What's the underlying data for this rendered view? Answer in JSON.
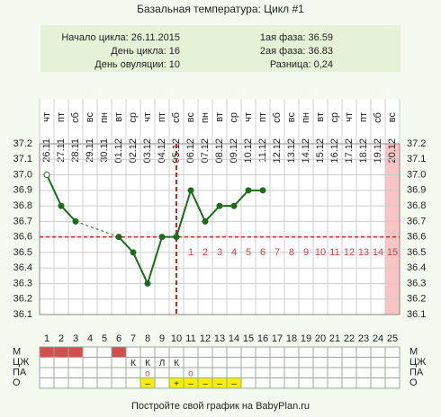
{
  "chart_data": {
    "type": "line",
    "title": "Базальная температура: Цикл #1",
    "info_left": [
      "Начало цикла: 26.11.2015",
      "День цикла: 16",
      "День овуляции: 10"
    ],
    "info_right": [
      "1ая фаза: 36.59",
      "2ая фаза: 36.83",
      "Разница: 0,24"
    ],
    "categories": [
      1,
      2,
      3,
      4,
      5,
      6,
      7,
      8,
      9,
      10,
      11,
      12,
      13,
      14,
      15,
      16,
      17,
      18,
      19,
      20,
      21,
      22,
      23,
      24,
      25
    ],
    "weekdays": [
      "чт",
      "пт",
      "сб",
      "вс",
      "пн",
      "вт",
      "ср",
      "чт",
      "пт",
      "сб",
      "вс",
      "пн",
      "вт",
      "ср",
      "чт",
      "пт",
      "сб",
      "вс",
      "пн",
      "вт",
      "ср",
      "чт",
      "пт",
      "сб",
      "вс"
    ],
    "dates": [
      "26.11",
      "27.11",
      "28.11",
      "29.11",
      "30.11",
      "01.12",
      "02.12",
      "03.12",
      "04.12",
      "05.12",
      "06.12",
      "07.12",
      "08.12",
      "09.12",
      "10.12",
      "11.12",
      "12.12",
      "13.12",
      "14.12",
      "15.12",
      "16.12",
      "17.12",
      "18.12",
      "19.12",
      "20.12"
    ],
    "series": [
      {
        "name": "Температура",
        "color": "#1e6b1e",
        "values": [
          37.0,
          36.8,
          36.7,
          null,
          null,
          36.6,
          36.5,
          36.3,
          36.6,
          36.6,
          36.9,
          36.7,
          36.8,
          36.8,
          36.9,
          36.9,
          null,
          null,
          null,
          null,
          null,
          null,
          null,
          null,
          null
        ]
      }
    ],
    "hollow_days": [
      1
    ],
    "ylim": [
      36.1,
      37.2
    ],
    "yticks": [
      37.2,
      37.1,
      {
        "value": 37,
        "label": "37.0"
      },
      36.9,
      36.8,
      36.7,
      36.6,
      36.5,
      36.4,
      36.3,
      36.2,
      36.1
    ],
    "coverline": 36.6,
    "ovulation_day": 10,
    "phase_days": [
      1,
      2,
      3,
      4,
      5,
      6,
      7,
      8,
      9,
      10,
      11,
      12,
      13,
      14,
      15
    ],
    "highlight_days": [
      25
    ],
    "grid": true,
    "rows": [
      {
        "label": "М",
        "color": "#d05050",
        "cells": [
          true,
          true,
          true,
          null,
          null,
          true,
          null,
          null,
          null,
          null,
          null,
          null,
          null,
          null,
          null,
          null,
          null,
          null,
          null,
          null,
          null,
          null,
          null,
          null,
          null
        ]
      },
      {
        "label": "ЦЖ",
        "cells": [
          null,
          null,
          null,
          null,
          null,
          null,
          "К",
          "К",
          "Л",
          "К",
          null,
          null,
          null,
          null,
          null,
          null,
          null,
          null,
          null,
          null,
          null,
          null,
          null,
          null,
          null
        ]
      },
      {
        "label": "ПА",
        "color": "#d05050",
        "cells": [
          null,
          null,
          null,
          null,
          null,
          null,
          null,
          "о",
          null,
          null,
          "о",
          null,
          null,
          null,
          null,
          null,
          null,
          null,
          null,
          null,
          null,
          null,
          null,
          null,
          null
        ]
      },
      {
        "label": "О",
        "color": "#f5ef00",
        "cells": [
          null,
          null,
          null,
          null,
          null,
          null,
          null,
          "–",
          null,
          "+",
          "–",
          "–",
          "–",
          "–",
          null,
          null,
          null,
          null,
          null,
          null,
          null,
          null,
          null,
          null,
          null
        ]
      }
    ],
    "footer": "Постройте свой график на BabyPlan.ru"
  }
}
